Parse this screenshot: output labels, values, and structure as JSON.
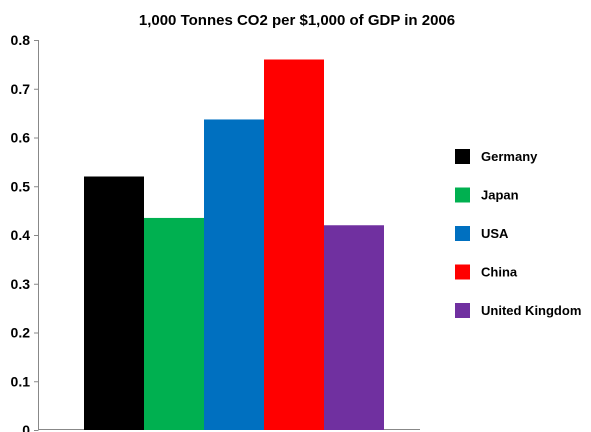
{
  "chart_data": {
    "type": "bar",
    "title": "1,000 Tonnes CO2 per $1,000 of GDP in 2006",
    "xlabel": "",
    "ylabel": "",
    "categories": [
      "Germany",
      "Japan",
      "USA",
      "China",
      "United Kingdom"
    ],
    "values": [
      0.52,
      0.435,
      0.637,
      0.76,
      0.42
    ],
    "colors": [
      "#000000",
      "#00B050",
      "#0070C0",
      "#FF0000",
      "#7030A0"
    ],
    "ylim": [
      0,
      0.8
    ],
    "yticks": [
      "0",
      "0.1",
      "0.2",
      "0.3",
      "0.4",
      "0.5",
      "0.6",
      "0.7",
      "0.8"
    ],
    "grid": false,
    "legend": "right"
  }
}
